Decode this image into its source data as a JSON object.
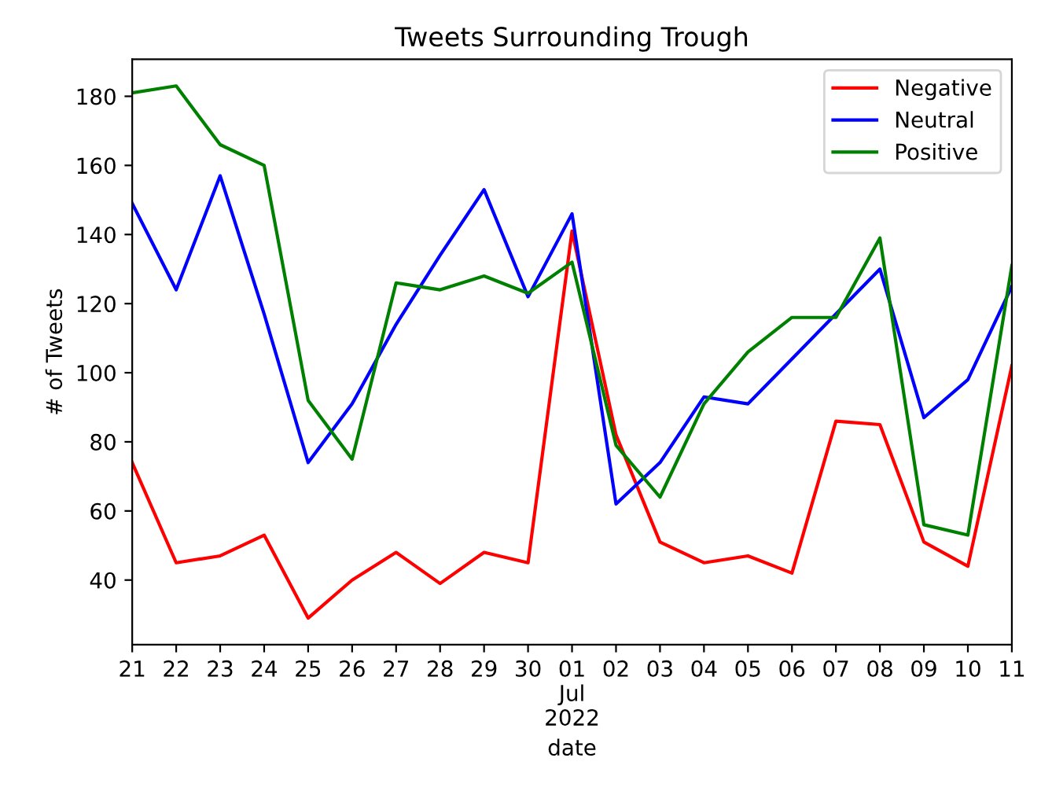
{
  "chart_data": {
    "type": "line",
    "title": "Tweets Surrounding Trough",
    "xlabel": "date",
    "ylabel": "# of Tweets",
    "x": [
      "2022-06-21",
      "2022-06-22",
      "2022-06-23",
      "2022-06-24",
      "2022-06-25",
      "2022-06-26",
      "2022-06-27",
      "2022-06-28",
      "2022-06-29",
      "2022-06-30",
      "2022-07-01",
      "2022-07-02",
      "2022-07-03",
      "2022-07-04",
      "2022-07-05",
      "2022-07-06",
      "2022-07-07",
      "2022-07-08",
      "2022-07-09",
      "2022-07-10",
      "2022-07-11"
    ],
    "series": [
      {
        "name": "Negative",
        "color": "#ff0000",
        "values": [
          74,
          45,
          47,
          53,
          29,
          40,
          48,
          39,
          48,
          45,
          141,
          82,
          51,
          45,
          47,
          42,
          86,
          85,
          51,
          44,
          102
        ]
      },
      {
        "name": "Neutral",
        "color": "#0000ff",
        "values": [
          149,
          124,
          157,
          117,
          74,
          91,
          114,
          134,
          153,
          122,
          146,
          62,
          74,
          93,
          91,
          104,
          117,
          130,
          87,
          98,
          125
        ]
      },
      {
        "name": "Positive",
        "color": "#008000",
        "values": [
          181,
          183,
          166,
          160,
          92,
          75,
          126,
          124,
          128,
          123,
          132,
          79,
          64,
          91,
          106,
          116,
          116,
          139,
          56,
          53,
          131
        ]
      }
    ],
    "xlim": [
      "2022-06-21",
      "2022-07-11"
    ],
    "xticks": [
      {
        "value": "2022-06-21",
        "label": "21"
      },
      {
        "value": "2022-06-22",
        "label": "22"
      },
      {
        "value": "2022-06-23",
        "label": "23"
      },
      {
        "value": "2022-06-24",
        "label": "24"
      },
      {
        "value": "2022-06-25",
        "label": "25"
      },
      {
        "value": "2022-06-26",
        "label": "26"
      },
      {
        "value": "2022-06-27",
        "label": "27"
      },
      {
        "value": "2022-06-28",
        "label": "28"
      },
      {
        "value": "2022-06-29",
        "label": "29"
      },
      {
        "value": "2022-06-30",
        "label": "30"
      },
      {
        "value": "2022-07-01",
        "label": "01\nJul\n2022"
      },
      {
        "value": "2022-07-02",
        "label": "02"
      },
      {
        "value": "2022-07-03",
        "label": "03"
      },
      {
        "value": "2022-07-04",
        "label": "04"
      },
      {
        "value": "2022-07-05",
        "label": "05"
      },
      {
        "value": "2022-07-06",
        "label": "06"
      },
      {
        "value": "2022-07-07",
        "label": "07"
      },
      {
        "value": "2022-07-08",
        "label": "08"
      },
      {
        "value": "2022-07-09",
        "label": "09"
      },
      {
        "value": "2022-07-10",
        "label": "10"
      },
      {
        "value": "2022-07-11",
        "label": "11"
      }
    ],
    "ylim": [
      21.3,
      190.7
    ],
    "yticks": [
      40,
      60,
      80,
      100,
      120,
      140,
      160,
      180
    ],
    "grid": false,
    "legend": "top right",
    "marker": "none",
    "line_style": "solid"
  }
}
